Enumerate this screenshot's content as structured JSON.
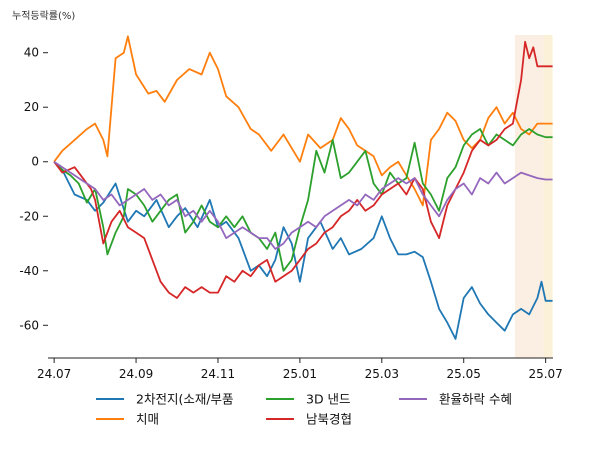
{
  "chart_data": {
    "type": "line",
    "ylabel": "누적등락률(%)",
    "xlabel": "",
    "title": "",
    "ylim": [
      -72,
      52
    ],
    "xlim": [
      -0.15,
      12.18
    ],
    "x_ticks": [
      {
        "label": "24.07",
        "x": 0
      },
      {
        "label": "24.09",
        "x": 2
      },
      {
        "label": "24.11",
        "x": 4
      },
      {
        "label": "25.01",
        "x": 6
      },
      {
        "label": "25.03",
        "x": 8
      },
      {
        "label": "25.05",
        "x": 10
      },
      {
        "label": "25.07",
        "x": 12
      }
    ],
    "y_ticks": [
      {
        "label": "-60",
        "value": -60
      },
      {
        "label": "-40",
        "value": -40
      },
      {
        "label": "-20",
        "value": -20
      },
      {
        "label": "0",
        "value": 0
      },
      {
        "label": "20",
        "value": 20
      },
      {
        "label": "40",
        "value": 40
      }
    ],
    "grid": false,
    "legend_placement": "bottom",
    "highlight_bands": [
      {
        "x0": 11.25,
        "x1": 11.95,
        "color": "#fbefe4"
      },
      {
        "x0": 11.95,
        "x1": 12.17,
        "color": "#fbf1d8"
      }
    ],
    "series": [
      {
        "name": "2차전지(소재/부품",
        "color": "#1f77b4",
        "points": [
          [
            0,
            0
          ],
          [
            0.2,
            -3
          ],
          [
            0.5,
            -12
          ],
          [
            0.8,
            -14
          ],
          [
            1,
            -18
          ],
          [
            1.2,
            -15
          ],
          [
            1.5,
            -8
          ],
          [
            1.8,
            -22
          ],
          [
            2,
            -18
          ],
          [
            2.2,
            -20
          ],
          [
            2.5,
            -14
          ],
          [
            2.8,
            -24
          ],
          [
            3,
            -20
          ],
          [
            3.2,
            -17
          ],
          [
            3.5,
            -24
          ],
          [
            3.8,
            -14
          ],
          [
            4,
            -24
          ],
          [
            4.2,
            -22
          ],
          [
            4.5,
            -28
          ],
          [
            4.8,
            -40
          ],
          [
            5,
            -38
          ],
          [
            5.2,
            -42
          ],
          [
            5.4,
            -36
          ],
          [
            5.6,
            -24
          ],
          [
            5.8,
            -30
          ],
          [
            6,
            -44
          ],
          [
            6.2,
            -28
          ],
          [
            6.5,
            -22
          ],
          [
            6.8,
            -32
          ],
          [
            7,
            -28
          ],
          [
            7.2,
            -34
          ],
          [
            7.5,
            -32
          ],
          [
            7.8,
            -28
          ],
          [
            8,
            -20
          ],
          [
            8.2,
            -28
          ],
          [
            8.4,
            -34
          ],
          [
            8.6,
            -34
          ],
          [
            8.8,
            -33
          ],
          [
            9,
            -35
          ],
          [
            9.2,
            -44
          ],
          [
            9.4,
            -54
          ],
          [
            9.6,
            -59
          ],
          [
            9.8,
            -65
          ],
          [
            10,
            -50
          ],
          [
            10.2,
            -46
          ],
          [
            10.4,
            -52
          ],
          [
            10.6,
            -56
          ],
          [
            10.8,
            -59
          ],
          [
            11,
            -62
          ],
          [
            11.2,
            -56
          ],
          [
            11.4,
            -54
          ],
          [
            11.6,
            -56
          ],
          [
            11.8,
            -50
          ],
          [
            11.9,
            -44
          ],
          [
            12,
            -51
          ],
          [
            12.17,
            -51
          ]
        ]
      },
      {
        "name": "치매",
        "color": "#ff7f0e",
        "points": [
          [
            0,
            0
          ],
          [
            0.2,
            4
          ],
          [
            0.5,
            8
          ],
          [
            0.8,
            12
          ],
          [
            1,
            14
          ],
          [
            1.2,
            8
          ],
          [
            1.3,
            2
          ],
          [
            1.5,
            38
          ],
          [
            1.7,
            40
          ],
          [
            1.8,
            46
          ],
          [
            2,
            32
          ],
          [
            2.3,
            25
          ],
          [
            2.5,
            26
          ],
          [
            2.7,
            22
          ],
          [
            3,
            30
          ],
          [
            3.3,
            34
          ],
          [
            3.6,
            32
          ],
          [
            3.8,
            40
          ],
          [
            4,
            34
          ],
          [
            4.2,
            24
          ],
          [
            4.5,
            20
          ],
          [
            4.8,
            12
          ],
          [
            5,
            10
          ],
          [
            5.3,
            4
          ],
          [
            5.6,
            10
          ],
          [
            6,
            0
          ],
          [
            6.2,
            10
          ],
          [
            6.5,
            5
          ],
          [
            6.8,
            8
          ],
          [
            7,
            16
          ],
          [
            7.2,
            12
          ],
          [
            7.4,
            6
          ],
          [
            7.6,
            4
          ],
          [
            7.8,
            2
          ],
          [
            8,
            -5
          ],
          [
            8.2,
            -2
          ],
          [
            8.4,
            0
          ],
          [
            8.6,
            -5
          ],
          [
            8.8,
            -10
          ],
          [
            9,
            -16
          ],
          [
            9.2,
            8
          ],
          [
            9.4,
            12
          ],
          [
            9.6,
            18
          ],
          [
            9.8,
            15
          ],
          [
            10,
            8
          ],
          [
            10.2,
            5
          ],
          [
            10.4,
            8
          ],
          [
            10.6,
            16
          ],
          [
            10.8,
            20
          ],
          [
            11,
            14
          ],
          [
            11.2,
            18
          ],
          [
            11.4,
            12
          ],
          [
            11.6,
            10
          ],
          [
            11.8,
            14
          ],
          [
            12,
            14
          ],
          [
            12.17,
            14
          ]
        ]
      },
      {
        "name": "3D 낸드",
        "color": "#2ca02c",
        "points": [
          [
            0,
            0
          ],
          [
            0.2,
            -3
          ],
          [
            0.4,
            -5
          ],
          [
            0.6,
            -8
          ],
          [
            0.8,
            -15
          ],
          [
            1,
            -10
          ],
          [
            1.2,
            -24
          ],
          [
            1.3,
            -34
          ],
          [
            1.5,
            -26
          ],
          [
            1.7,
            -20
          ],
          [
            1.8,
            -10
          ],
          [
            2,
            -12
          ],
          [
            2.2,
            -16
          ],
          [
            2.4,
            -22
          ],
          [
            2.6,
            -18
          ],
          [
            2.8,
            -14
          ],
          [
            3,
            -12
          ],
          [
            3.2,
            -26
          ],
          [
            3.4,
            -22
          ],
          [
            3.6,
            -16
          ],
          [
            3.8,
            -22
          ],
          [
            4,
            -24
          ],
          [
            4.2,
            -20
          ],
          [
            4.4,
            -24
          ],
          [
            4.6,
            -20
          ],
          [
            4.8,
            -26
          ],
          [
            5,
            -28
          ],
          [
            5.2,
            -32
          ],
          [
            5.4,
            -26
          ],
          [
            5.6,
            -40
          ],
          [
            5.8,
            -36
          ],
          [
            6,
            -24
          ],
          [
            6.2,
            -14
          ],
          [
            6.4,
            4
          ],
          [
            6.6,
            -4
          ],
          [
            6.8,
            8
          ],
          [
            7,
            -6
          ],
          [
            7.2,
            -4
          ],
          [
            7.4,
            0
          ],
          [
            7.6,
            4
          ],
          [
            7.8,
            -8
          ],
          [
            8,
            -12
          ],
          [
            8.2,
            -4
          ],
          [
            8.4,
            -8
          ],
          [
            8.6,
            -6
          ],
          [
            8.8,
            7
          ],
          [
            9,
            -8
          ],
          [
            9.2,
            -12
          ],
          [
            9.4,
            -18
          ],
          [
            9.6,
            -6
          ],
          [
            9.8,
            -2
          ],
          [
            10,
            6
          ],
          [
            10.2,
            10
          ],
          [
            10.4,
            12
          ],
          [
            10.6,
            6
          ],
          [
            10.8,
            10
          ],
          [
            11,
            8
          ],
          [
            11.2,
            6
          ],
          [
            11.4,
            10
          ],
          [
            11.6,
            12
          ],
          [
            11.8,
            10
          ],
          [
            12,
            9
          ],
          [
            12.17,
            9
          ]
        ]
      },
      {
        "name": "남북경협",
        "color": "#d62728",
        "points": [
          [
            0,
            0
          ],
          [
            0.2,
            -4
          ],
          [
            0.5,
            -2
          ],
          [
            0.7,
            -6
          ],
          [
            0.9,
            -10
          ],
          [
            1,
            -14
          ],
          [
            1.2,
            -30
          ],
          [
            1.4,
            -22
          ],
          [
            1.6,
            -18
          ],
          [
            1.8,
            -24
          ],
          [
            2,
            -26
          ],
          [
            2.2,
            -28
          ],
          [
            2.4,
            -36
          ],
          [
            2.6,
            -44
          ],
          [
            2.8,
            -48
          ],
          [
            3,
            -50
          ],
          [
            3.2,
            -46
          ],
          [
            3.4,
            -48
          ],
          [
            3.6,
            -46
          ],
          [
            3.8,
            -48
          ],
          [
            4,
            -48
          ],
          [
            4.2,
            -42
          ],
          [
            4.4,
            -44
          ],
          [
            4.6,
            -40
          ],
          [
            4.8,
            -42
          ],
          [
            5,
            -38
          ],
          [
            5.2,
            -36
          ],
          [
            5.4,
            -44
          ],
          [
            5.6,
            -42
          ],
          [
            5.8,
            -40
          ],
          [
            6,
            -36
          ],
          [
            6.2,
            -32
          ],
          [
            6.4,
            -30
          ],
          [
            6.6,
            -26
          ],
          [
            6.8,
            -24
          ],
          [
            7,
            -20
          ],
          [
            7.2,
            -18
          ],
          [
            7.4,
            -14
          ],
          [
            7.6,
            -18
          ],
          [
            7.8,
            -16
          ],
          [
            8,
            -12
          ],
          [
            8.2,
            -10
          ],
          [
            8.4,
            -8
          ],
          [
            8.6,
            -12
          ],
          [
            8.8,
            -6
          ],
          [
            9,
            -10
          ],
          [
            9.2,
            -22
          ],
          [
            9.4,
            -28
          ],
          [
            9.6,
            -16
          ],
          [
            9.8,
            -10
          ],
          [
            10,
            -4
          ],
          [
            10.2,
            4
          ],
          [
            10.4,
            8
          ],
          [
            10.6,
            6
          ],
          [
            10.8,
            8
          ],
          [
            11,
            12
          ],
          [
            11.2,
            14
          ],
          [
            11.4,
            30
          ],
          [
            11.5,
            44
          ],
          [
            11.6,
            38
          ],
          [
            11.7,
            42
          ],
          [
            11.8,
            35
          ],
          [
            12,
            35
          ],
          [
            12.17,
            35
          ]
        ]
      },
      {
        "name": "환율하락 수혜",
        "color": "#9467bd",
        "points": [
          [
            0,
            0
          ],
          [
            0.2,
            -2
          ],
          [
            0.4,
            -4
          ],
          [
            0.6,
            -6
          ],
          [
            0.8,
            -8
          ],
          [
            1,
            -10
          ],
          [
            1.2,
            -14
          ],
          [
            1.4,
            -12
          ],
          [
            1.6,
            -16
          ],
          [
            1.8,
            -14
          ],
          [
            2,
            -12
          ],
          [
            2.2,
            -10
          ],
          [
            2.4,
            -14
          ],
          [
            2.6,
            -12
          ],
          [
            2.8,
            -16
          ],
          [
            3,
            -14
          ],
          [
            3.2,
            -20
          ],
          [
            3.4,
            -18
          ],
          [
            3.6,
            -22
          ],
          [
            3.8,
            -18
          ],
          [
            4,
            -22
          ],
          [
            4.2,
            -28
          ],
          [
            4.4,
            -26
          ],
          [
            4.6,
            -24
          ],
          [
            4.8,
            -26
          ],
          [
            5,
            -28
          ],
          [
            5.2,
            -28
          ],
          [
            5.4,
            -32
          ],
          [
            5.6,
            -30
          ],
          [
            5.8,
            -26
          ],
          [
            6,
            -24
          ],
          [
            6.2,
            -22
          ],
          [
            6.4,
            -24
          ],
          [
            6.6,
            -20
          ],
          [
            6.8,
            -18
          ],
          [
            7,
            -16
          ],
          [
            7.2,
            -14
          ],
          [
            7.4,
            -16
          ],
          [
            7.6,
            -12
          ],
          [
            7.8,
            -14
          ],
          [
            8,
            -10
          ],
          [
            8.2,
            -8
          ],
          [
            8.4,
            -6
          ],
          [
            8.6,
            -8
          ],
          [
            8.8,
            -6
          ],
          [
            9,
            -12
          ],
          [
            9.2,
            -16
          ],
          [
            9.4,
            -20
          ],
          [
            9.6,
            -14
          ],
          [
            9.8,
            -10
          ],
          [
            10,
            -8
          ],
          [
            10.2,
            -12
          ],
          [
            10.4,
            -6
          ],
          [
            10.6,
            -8
          ],
          [
            10.8,
            -4
          ],
          [
            11,
            -8
          ],
          [
            11.2,
            -6
          ],
          [
            11.4,
            -4
          ],
          [
            11.6,
            -5
          ],
          [
            11.8,
            -6
          ],
          [
            12,
            -6.5
          ],
          [
            12.17,
            -6.5
          ]
        ]
      }
    ]
  }
}
